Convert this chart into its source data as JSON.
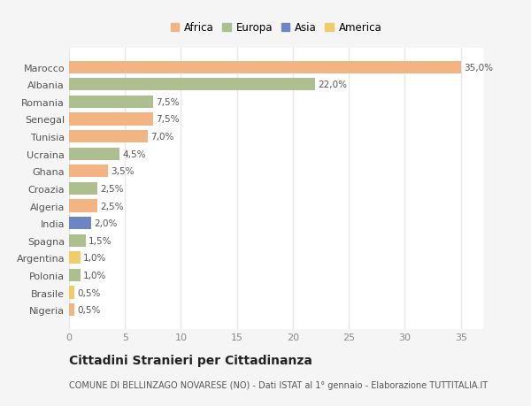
{
  "categories": [
    "Marocco",
    "Albania",
    "Romania",
    "Senegal",
    "Tunisia",
    "Ucraina",
    "Ghana",
    "Croazia",
    "Algeria",
    "India",
    "Spagna",
    "Argentina",
    "Polonia",
    "Brasile",
    "Nigeria"
  ],
  "values": [
    35.0,
    22.0,
    7.5,
    7.5,
    7.0,
    4.5,
    3.5,
    2.5,
    2.5,
    2.0,
    1.5,
    1.0,
    1.0,
    0.5,
    0.5
  ],
  "labels": [
    "35,0%",
    "22,0%",
    "7,5%",
    "7,5%",
    "7,0%",
    "4,5%",
    "3,5%",
    "2,5%",
    "2,5%",
    "2,0%",
    "1,5%",
    "1,0%",
    "1,0%",
    "0,5%",
    "0,5%"
  ],
  "colors": [
    "#F2B482",
    "#ADBF8F",
    "#ADBF8F",
    "#F2B482",
    "#F2B482",
    "#ADBF8F",
    "#F2B482",
    "#ADBF8F",
    "#F2B482",
    "#6B86C2",
    "#ADBF8F",
    "#F0CC6A",
    "#ADBF8F",
    "#F0CC6A",
    "#F2B482"
  ],
  "legend_labels": [
    "Africa",
    "Europa",
    "Asia",
    "America"
  ],
  "legend_colors": [
    "#F2B482",
    "#ADBF8F",
    "#6B86C2",
    "#F0CC6A"
  ],
  "title": "Cittadini Stranieri per Cittadinanza",
  "subtitle": "COMUNE DI BELLINZAGO NOVARESE (NO) - Dati ISTAT al 1° gennaio - Elaborazione TUTTITALIA.IT",
  "xlim": [
    0,
    37
  ],
  "xticks": [
    0,
    5,
    10,
    15,
    20,
    25,
    30,
    35
  ],
  "fig_bg_color": "#f5f5f5",
  "plot_bg_color": "#ffffff",
  "grid_color": "#e8e8e8",
  "bar_height": 0.72,
  "label_fontsize": 7.5,
  "ytick_fontsize": 8.0,
  "xtick_fontsize": 8.0,
  "legend_fontsize": 8.5,
  "title_fontsize": 10,
  "subtitle_fontsize": 7
}
